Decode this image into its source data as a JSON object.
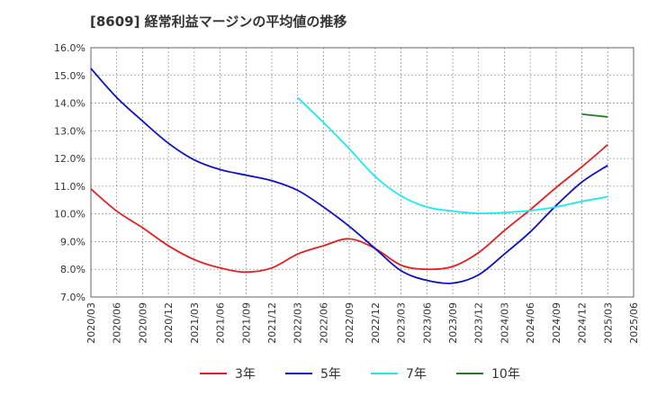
{
  "chart_data": {
    "type": "line",
    "title": "[8609]  経常利益マージンの平均値の推移",
    "xlabel": "",
    "ylabel": "",
    "ylim": [
      7.0,
      16.0
    ],
    "y_ticks": [
      "7.0%",
      "8.0%",
      "9.0%",
      "10.0%",
      "11.0%",
      "12.0%",
      "13.0%",
      "14.0%",
      "15.0%",
      "16.0%"
    ],
    "x_ticks": [
      "2020/03",
      "2020/06",
      "2020/09",
      "2020/12",
      "2021/03",
      "2021/06",
      "2021/09",
      "2021/12",
      "2022/03",
      "2022/06",
      "2022/09",
      "2022/12",
      "2023/03",
      "2023/06",
      "2023/09",
      "2023/12",
      "2024/03",
      "2024/06",
      "2024/09",
      "2024/12",
      "2025/03",
      "2025/06"
    ],
    "grid": true,
    "legend_position": "bottom",
    "series": [
      {
        "name": "3年",
        "color": "#e02020",
        "x": [
          "2020/03",
          "2020/06",
          "2020/09",
          "2020/12",
          "2021/03",
          "2021/06",
          "2021/09",
          "2021/12",
          "2022/03",
          "2022/06",
          "2022/09",
          "2022/12",
          "2023/03",
          "2023/06",
          "2023/09",
          "2023/12",
          "2024/03",
          "2024/06",
          "2024/09",
          "2024/12",
          "2025/03"
        ],
        "values": [
          10.9,
          10.1,
          9.5,
          8.85,
          8.35,
          8.05,
          7.9,
          8.05,
          8.55,
          8.85,
          9.1,
          8.75,
          8.15,
          8.0,
          8.1,
          8.6,
          9.4,
          10.15,
          10.95,
          11.7,
          12.5
        ]
      },
      {
        "name": "5年",
        "color": "#1010c0",
        "x": [
          "2020/03",
          "2020/06",
          "2020/09",
          "2020/12",
          "2021/03",
          "2021/06",
          "2021/09",
          "2021/12",
          "2022/03",
          "2022/06",
          "2022/09",
          "2022/12",
          "2023/03",
          "2023/06",
          "2023/09",
          "2023/12",
          "2024/03",
          "2024/06",
          "2024/09",
          "2024/12",
          "2025/03"
        ],
        "values": [
          15.25,
          14.2,
          13.35,
          12.55,
          11.95,
          11.6,
          11.4,
          11.2,
          10.85,
          10.25,
          9.55,
          8.75,
          7.95,
          7.6,
          7.5,
          7.8,
          8.55,
          9.35,
          10.3,
          11.15,
          11.75
        ]
      },
      {
        "name": "7年",
        "color": "#20e8f0",
        "x": [
          "2022/03",
          "2022/06",
          "2022/09",
          "2022/12",
          "2023/03",
          "2023/06",
          "2023/09",
          "2023/12",
          "2024/03",
          "2024/06",
          "2024/09",
          "2024/12",
          "2025/03"
        ],
        "values": [
          14.2,
          13.3,
          12.35,
          11.35,
          10.65,
          10.25,
          10.1,
          10.02,
          10.05,
          10.12,
          10.25,
          10.45,
          10.62
        ]
      },
      {
        "name": "10年",
        "color": "#208020",
        "x": [
          "2024/12",
          "2025/03"
        ],
        "values": [
          13.6,
          13.5
        ]
      }
    ]
  }
}
